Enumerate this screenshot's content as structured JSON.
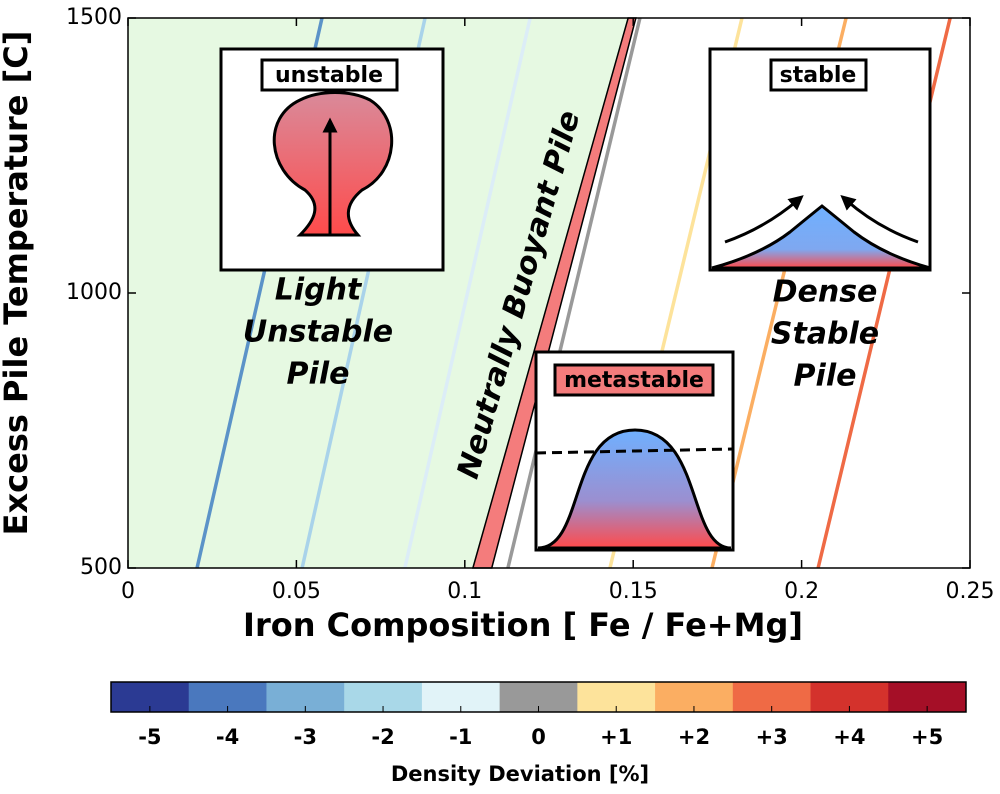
{
  "chart_data": {
    "type": "line",
    "xlabel": "Iron Composition [ Fe / Fe+Mg]",
    "ylabel": "Excess Pile Temperature [C]",
    "xlim": [
      0,
      0.25
    ],
    "ylim": [
      500,
      1500
    ],
    "xticks": [
      0,
      0.05,
      0.1,
      0.15,
      0.2,
      0.25
    ],
    "yticks": [
      500,
      1000,
      1500
    ],
    "y": [
      500,
      1500
    ],
    "series": [
      {
        "color": "#5b93c8",
        "x": [
          0.0205,
          0.0576
        ]
      },
      {
        "color": "#a9d3ea",
        "x": [
          0.0517,
          0.0882
        ]
      },
      {
        "color": "#dcedf7",
        "x": [
          0.0822,
          0.1194
        ]
      },
      {
        "color": "#999999",
        "x": [
          0.1128,
          0.152
        ]
      },
      {
        "color": "#fde39b",
        "x": [
          0.1431,
          0.1823
        ]
      },
      {
        "color": "#fbae62",
        "x": [
          0.1734,
          0.2132
        ]
      },
      {
        "color": "#ef6a45",
        "x": [
          0.2049,
          0.2441
        ]
      }
    ],
    "band": {
      "color": "#f47c7c",
      "x_left": [
        0.1024,
        0.1485
      ],
      "x_right": [
        0.108,
        0.1508
      ]
    },
    "region_color": "#e6f9e2",
    "annotations": {
      "unstable": "unstable",
      "stable": "stable",
      "metastable": "metastable",
      "light": [
        "Light",
        "Unstable",
        "Pile"
      ],
      "dense": [
        "Dense",
        "Stable",
        "Pile"
      ],
      "neutral": "Neutrally Buoyant Pile"
    },
    "colorbar": {
      "label": "Density Deviation [%]",
      "lim": [
        -5.5,
        5.5
      ],
      "colors": [
        "#2b3a93",
        "#4a78be",
        "#79afd6",
        "#a9d8e8",
        "#e1f3f8",
        "#999999",
        "#fde39b",
        "#fbae62",
        "#ef6a45",
        "#d4322c",
        "#a50f27"
      ],
      "ticks": [
        -5,
        -4,
        -3,
        -2,
        -1,
        0,
        {
          "value": 1,
          "label": "+1"
        },
        {
          "value": 2,
          "label": "+2"
        },
        {
          "value": 3,
          "label": "+3"
        },
        {
          "value": 4,
          "label": "+4"
        },
        {
          "value": 5,
          "label": "+5"
        }
      ]
    }
  }
}
